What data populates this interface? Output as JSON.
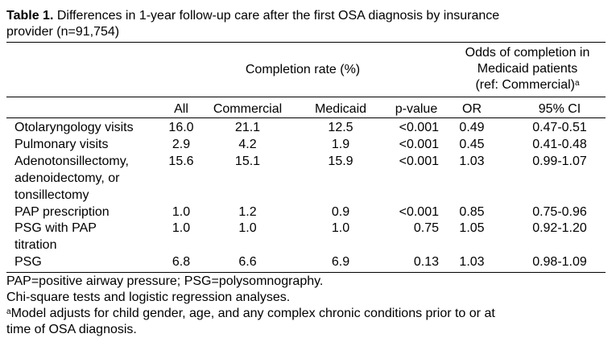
{
  "title": {
    "label": "Table 1.",
    "text": " Differences in 1-year follow-up care after the first OSA diagnosis by insurance",
    "text2": "provider (n=91,754)"
  },
  "headers": {
    "completion_rate": "Completion rate (%)",
    "odds_line1": "Odds of completion in",
    "odds_line2": "Medicaid patients",
    "odds_line3": "(ref: Commercial)",
    "odds_sup": "a",
    "col_all": "All",
    "col_commercial": "Commercial",
    "col_medicaid": "Medicaid",
    "col_pvalue": "p-value",
    "col_or": "OR",
    "col_ci": "95% CI"
  },
  "rows": [
    {
      "label": [
        "Otolaryngology visits"
      ],
      "all": "16.0",
      "commercial": "21.1",
      "medicaid": "12.5",
      "p": "<0.001",
      "or": "0.49",
      "ci": "0.47-0.51"
    },
    {
      "label": [
        "Pulmonary visits"
      ],
      "all": "2.9",
      "commercial": "4.2",
      "medicaid": "1.9",
      "p": "<0.001",
      "or": "0.45",
      "ci": "0.41-0.48"
    },
    {
      "label": [
        "Adenotonsillectomy,",
        "adenoidectomy, or",
        "tonsillectomy"
      ],
      "all": "15.6",
      "commercial": "15.1",
      "medicaid": "15.9",
      "p": "<0.001",
      "or": "1.03",
      "ci": "0.99-1.07"
    },
    {
      "label": [
        "PAP prescription"
      ],
      "all": "1.0",
      "commercial": "1.2",
      "medicaid": "0.9",
      "p": "<0.001",
      "or": "0.85",
      "ci": "0.75-0.96"
    },
    {
      "label": [
        "PSG with PAP",
        "titration"
      ],
      "all": "1.0",
      "commercial": "1.0",
      "medicaid": "1.0",
      "p": "0.75",
      "or": "1.05",
      "ci": "0.92-1.20"
    },
    {
      "label": [
        "PSG"
      ],
      "all": "6.8",
      "commercial": "6.6",
      "medicaid": "6.9",
      "p": "0.13",
      "or": "1.03",
      "ci": "0.98-1.09"
    }
  ],
  "footnotes": {
    "abbrev": "PAP=positive airway pressure; PSG=polysomnography.",
    "tests": "Chi-square tests and logistic regression analyses.",
    "a_sup": "a",
    "a_line1": "Model adjusts for child gender, age, and any complex chronic conditions prior to or at",
    "a_line2": "time of OSA diagnosis."
  }
}
